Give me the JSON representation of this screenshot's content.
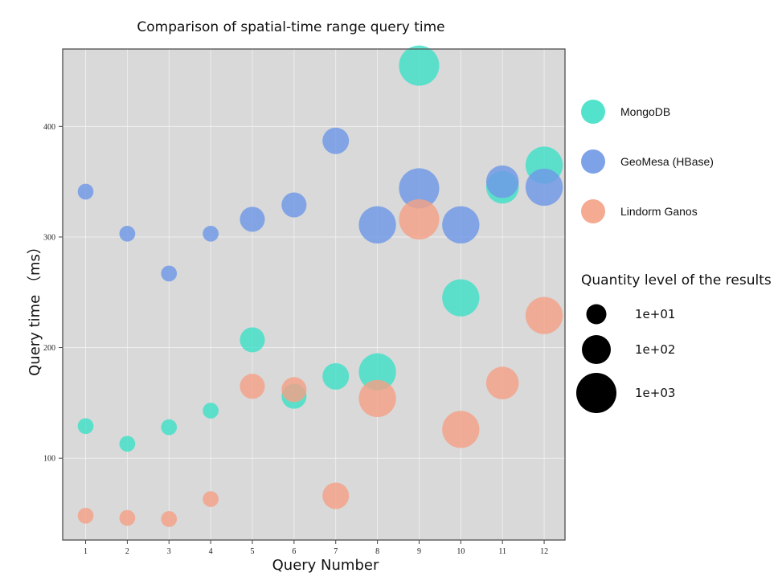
{
  "chart_data": {
    "type": "scatter",
    "subtype": "bubble",
    "title": "Comparison of spatial-time range query time",
    "xlabel": "Query Number",
    "ylabel": "Query time （ms）",
    "x": [
      1,
      2,
      3,
      4,
      5,
      6,
      7,
      8,
      9,
      10,
      11,
      12
    ],
    "xticks": [
      "1",
      "2",
      "3",
      "4",
      "5",
      "6",
      "7",
      "8",
      "9",
      "10",
      "11",
      "12"
    ],
    "yticks": [
      100,
      200,
      300,
      400
    ],
    "xlim": [
      0.45,
      12.5
    ],
    "ylim": [
      26,
      470
    ],
    "grid": true,
    "legend_position": "right",
    "size_legend_title": "Quantity level of the results",
    "size_legend": [
      {
        "label": "1e+01",
        "level": 1
      },
      {
        "label": "1e+02",
        "level": 2
      },
      {
        "label": "1e+03",
        "level": 3
      }
    ],
    "series": [
      {
        "name": "MongoDB",
        "color": "#40e0c8",
        "values": [
          129,
          113,
          128,
          143,
          207,
          156,
          174,
          178,
          455,
          245,
          345,
          365
        ],
        "size_levels": [
          1.3,
          1.3,
          1.3,
          1.3,
          1.9,
          1.9,
          2.0,
          2.7,
          2.9,
          2.7,
          2.4,
          2.7
        ]
      },
      {
        "name": "GeoMesa (HBase)",
        "color": "#6f98e6",
        "values": [
          341,
          303,
          267,
          303,
          316,
          329,
          387,
          311,
          344,
          311,
          350,
          345
        ],
        "size_levels": [
          1.3,
          1.3,
          1.3,
          1.3,
          1.9,
          1.9,
          2.0,
          2.7,
          2.9,
          2.7,
          2.4,
          2.7
        ]
      },
      {
        "name": "Lindorm Ganos",
        "color": "#f4a186",
        "values": [
          48,
          46,
          45,
          63,
          165,
          162,
          66,
          154,
          316,
          126,
          168,
          229
        ],
        "size_levels": [
          1.3,
          1.3,
          1.3,
          1.3,
          1.9,
          1.9,
          2.0,
          2.7,
          2.9,
          2.7,
          2.4,
          2.7
        ]
      }
    ]
  }
}
